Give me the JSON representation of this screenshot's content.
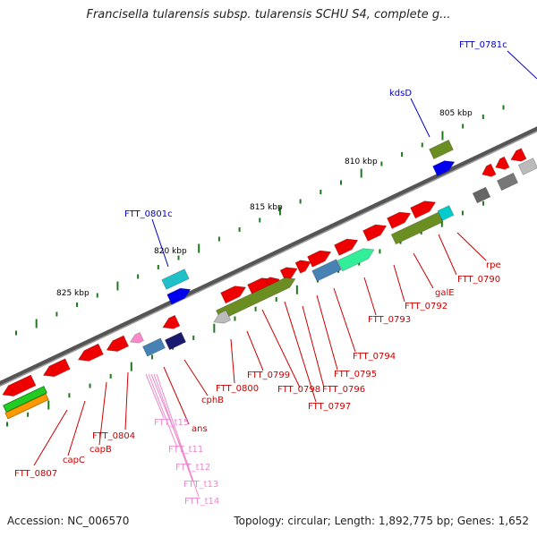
{
  "title": "Francisella tularensis subsp. tularensis SCHU S4, complete g...",
  "footer": {
    "accession": "Accession: NC_006570",
    "topology": "Topology: circular; Length: 1,892,775 bp; Genes: 1,652"
  },
  "scale_labels": [
    "805 kbp",
    "810 kbp",
    "815 kbp",
    "820 kbp",
    "825 kbp"
  ],
  "colors": {
    "backbone": "#6e6e6e",
    "cds": "#ee0000",
    "trna": "#ff88cc",
    "label_red": "#cc0000",
    "label_blue": "#0000cc",
    "label_pink": "#ee88cc",
    "tick": "#1f7a1f"
  },
  "gene_labels": [
    {
      "text": "FTT_0781c",
      "color": "blue"
    },
    {
      "text": "kdsD",
      "color": "blue"
    },
    {
      "text": "FTT_0801c",
      "color": "blue"
    },
    {
      "text": "rpe",
      "color": "red"
    },
    {
      "text": "FTT_0790",
      "color": "red"
    },
    {
      "text": "galE",
      "color": "red"
    },
    {
      "text": "FTT_0792",
      "color": "red"
    },
    {
      "text": "FTT_0793",
      "color": "red"
    },
    {
      "text": "FTT_0794",
      "color": "red"
    },
    {
      "text": "FTT_0795",
      "color": "red"
    },
    {
      "text": "FTT_0796",
      "color": "red"
    },
    {
      "text": "FTT_0797",
      "color": "red"
    },
    {
      "text": "FTT_0798",
      "color": "red"
    },
    {
      "text": "FTT_0799",
      "color": "red"
    },
    {
      "text": "FTT_0800",
      "color": "red"
    },
    {
      "text": "cphB",
      "color": "red"
    },
    {
      "text": "ans",
      "color": "red"
    },
    {
      "text": "FTT_0804",
      "color": "red"
    },
    {
      "text": "capB",
      "color": "red"
    },
    {
      "text": "capC",
      "color": "red"
    },
    {
      "text": "FTT_0807",
      "color": "red"
    },
    {
      "text": "FTT_t15",
      "color": "pink"
    },
    {
      "text": "FTT_t11",
      "color": "pink"
    },
    {
      "text": "FTT_t12",
      "color": "pink"
    },
    {
      "text": "FTT_t13",
      "color": "pink"
    },
    {
      "text": "FTT_t14",
      "color": "pink"
    }
  ]
}
